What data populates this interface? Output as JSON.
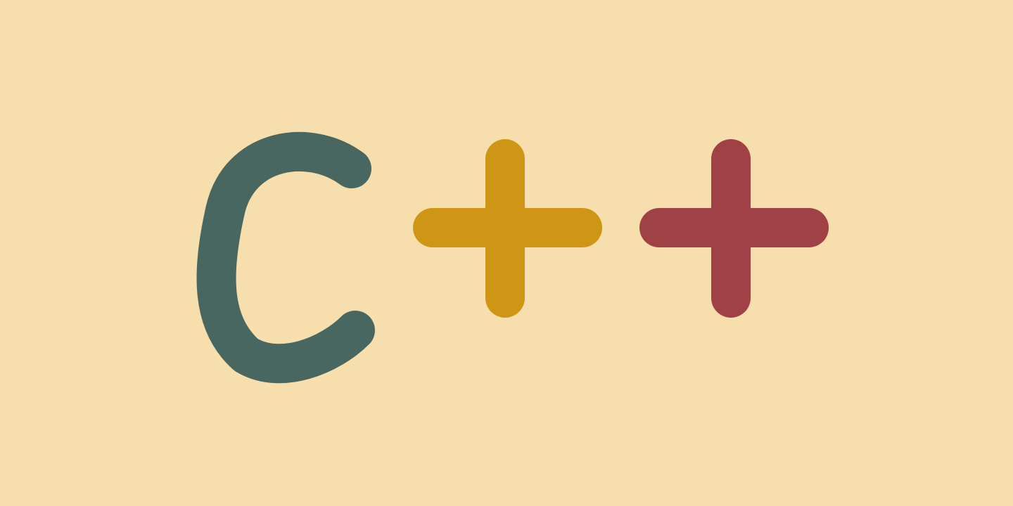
{
  "logo": {
    "text": "C++",
    "letter": "C",
    "plus_1": "+",
    "plus_2": "+"
  },
  "colors": {
    "background": "#f6dfad",
    "letter_c": "#486760",
    "plus_1": "#cf9616",
    "plus_2": "#a04245"
  }
}
